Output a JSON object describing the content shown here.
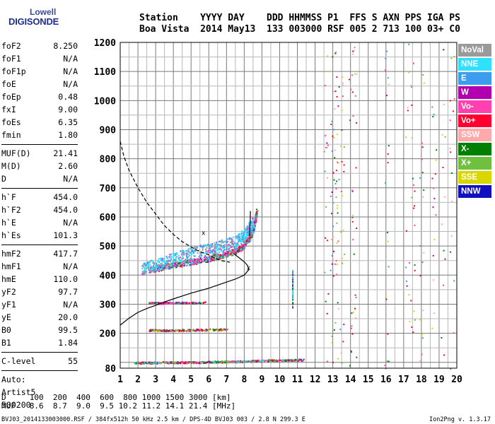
{
  "logo": {
    "line1": "Lowell",
    "line2": "DIGISONDE"
  },
  "header": {
    "line1": "Station    YYYY DAY    DDD HHMMSS P1  FFS S AXN PPS IGA PS",
    "line2": "Boa Vista  2014 May13  133 003000 RSF 005 2 713 100 03+ C0"
  },
  "params": {
    "group1": [
      {
        "name": "foF2",
        "value": "8.250"
      },
      {
        "name": "foF1",
        "value": "N/A"
      },
      {
        "name": "foF1p",
        "value": "N/A"
      },
      {
        "name": "foE",
        "value": "N/A"
      },
      {
        "name": "foEp",
        "value": "0.48"
      },
      {
        "name": "fxI",
        "value": "9.00"
      },
      {
        "name": "foEs",
        "value": "6.35"
      },
      {
        "name": "fmin",
        "value": "1.80"
      }
    ],
    "group2": [
      {
        "name": "MUF(D)",
        "value": "21.41"
      },
      {
        "name": "M(D)",
        "value": "2.60"
      },
      {
        "name": "D",
        "value": "N/A"
      }
    ],
    "group3": [
      {
        "name": "h`F",
        "value": "454.0"
      },
      {
        "name": "h`F2",
        "value": "454.0"
      },
      {
        "name": "h`E",
        "value": "N/A"
      },
      {
        "name": "h`Es",
        "value": "101.3"
      }
    ],
    "group4": [
      {
        "name": "hmF2",
        "value": "417.7"
      },
      {
        "name": "hmF1",
        "value": "N/A"
      },
      {
        "name": "hmE",
        "value": "110.0"
      },
      {
        "name": "yF2",
        "value": "97.7"
      },
      {
        "name": "yF1",
        "value": "N/A"
      },
      {
        "name": "yE",
        "value": "20.0"
      },
      {
        "name": "B0",
        "value": "99.5"
      },
      {
        "name": "B1",
        "value": "1.84"
      }
    ],
    "group5": [
      {
        "name": "C-level",
        "value": "55"
      }
    ],
    "auto": {
      "line1": "Auto:",
      "line2": "Artist5",
      "line3": "500200"
    }
  },
  "legend": [
    {
      "label": "NoVal",
      "color": "#9a9a9a"
    },
    {
      "label": "NNE",
      "color": "#30e0ff"
    },
    {
      "label": "E",
      "color": "#3c9cf0"
    },
    {
      "label": "W",
      "color": "#b000b0"
    },
    {
      "label": "Vo-",
      "color": "#ff40b0"
    },
    {
      "label": "Vo+",
      "color": "#ff0030"
    },
    {
      "label": "SSW",
      "color": "#ffaaaa"
    },
    {
      "label": "X-",
      "color": "#008000"
    },
    {
      "label": "X+",
      "color": "#70c040"
    },
    {
      "label": "SSE",
      "color": "#d8d800"
    },
    {
      "label": "NNW",
      "color": "#1010c0"
    }
  ],
  "muf_table": {
    "d_row": "D     100  200  400  600  800 1000 1500 3000 [km]",
    "muf_row": "MUF   8.6  8.7  9.0  9.5 10.2 11.2 14.1 21.4 [MHz]"
  },
  "footer": {
    "file": "BVJ03_2014133003000.RSF / 384fx512h 50 kHz 2.5 km / DPS-4D BVJ03 003 / 2.8 N 299.3 E",
    "version": "Ion2Png v. 1.3.17"
  },
  "chart_data": {
    "type": "scatter",
    "xlim": [
      1,
      20
    ],
    "ylim": [
      80,
      1200
    ],
    "x_ticks": [
      1,
      2,
      3,
      4,
      5,
      6,
      7,
      8,
      9,
      10,
      11,
      12,
      13,
      14,
      15,
      16,
      17,
      18,
      19,
      20
    ],
    "y_ticks": [
      80,
      100,
      200,
      300,
      400,
      500,
      600,
      700,
      800,
      900,
      1000,
      1100,
      1200
    ],
    "y_tick_labels": [
      80,
      200,
      300,
      400,
      500,
      600,
      700,
      800,
      900,
      1000,
      1100,
      1200
    ],
    "grid": true,
    "freq_grid_step": 0.5,
    "height_grid_step": 50,
    "series": [
      {
        "kind": "echo-trace",
        "layer": "F2 o-trace",
        "points": [
          [
            2.6,
            418
          ],
          [
            3.2,
            426
          ],
          [
            3.8,
            434
          ],
          [
            4.4,
            440
          ],
          [
            5.0,
            446
          ],
          [
            5.5,
            452
          ],
          [
            6.0,
            458
          ],
          [
            6.5,
            466
          ],
          [
            7.0,
            474
          ],
          [
            7.4,
            482
          ],
          [
            7.8,
            494
          ],
          [
            8.1,
            512
          ],
          [
            8.3,
            532
          ],
          [
            8.5,
            560
          ],
          [
            8.6,
            592
          ],
          [
            8.7,
            620
          ]
        ],
        "spread": 20
      },
      {
        "kind": "echo-trace",
        "layer": "spread F",
        "points": [
          [
            2.2,
            420
          ],
          [
            3.0,
            438
          ],
          [
            4.0,
            460
          ],
          [
            5.0,
            478
          ],
          [
            6.0,
            492
          ],
          [
            6.8,
            504
          ],
          [
            7.6,
            520
          ],
          [
            8.1,
            548
          ],
          [
            8.5,
            585
          ]
        ],
        "spread": 40
      },
      {
        "kind": "echo-trace",
        "layer": "Es",
        "points": [
          [
            1.8,
            100
          ],
          [
            2.5,
            100
          ],
          [
            3.5,
            101
          ],
          [
            4.5,
            101
          ],
          [
            5.5,
            102
          ],
          [
            6.5,
            103
          ],
          [
            7.5,
            104
          ],
          [
            8.5,
            106
          ],
          [
            9.5,
            108
          ],
          [
            10.5,
            109
          ],
          [
            11.3,
            110
          ]
        ],
        "spread": 6
      },
      {
        "kind": "echo-trace",
        "layer": "Es 2nd hop",
        "points": [
          [
            2.6,
            212
          ],
          [
            3.5,
            211
          ],
          [
            4.5,
            212
          ],
          [
            5.5,
            213
          ],
          [
            6.5,
            214
          ],
          [
            7.0,
            215
          ]
        ],
        "spread": 6
      },
      {
        "kind": "echo-trace",
        "layer": "Es 3rd hop",
        "points": [
          [
            2.6,
            305
          ],
          [
            3.2,
            305
          ],
          [
            3.8,
            306
          ],
          [
            4.4,
            306
          ],
          [
            5.0,
            306
          ],
          [
            5.8,
            307
          ]
        ],
        "spread": 6
      },
      {
        "kind": "solid-line",
        "name": "",
        "points": [
          [
            1.0,
            228
          ],
          [
            1.5,
            252
          ],
          [
            2.0,
            272
          ],
          [
            2.5,
            285
          ],
          [
            3.0,
            296
          ],
          [
            3.5,
            308
          ],
          [
            4.0,
            318
          ],
          [
            5.0,
            338
          ],
          [
            6.0,
            355
          ],
          [
            7.0,
            376
          ],
          [
            7.5,
            386
          ],
          [
            8.0,
            400
          ],
          [
            8.25,
            418
          ],
          [
            8.2,
            432
          ],
          [
            8.0,
            446
          ],
          [
            7.7,
            460
          ],
          [
            7.4,
            474
          ]
        ]
      },
      {
        "kind": "solid-line",
        "name": "",
        "points": [
          [
            8.3,
            535
          ],
          [
            8.32,
            560
          ],
          [
            8.34,
            590
          ],
          [
            8.35,
            620
          ]
        ]
      },
      {
        "kind": "dashed-line",
        "name": "",
        "points": [
          [
            1.0,
            860
          ],
          [
            1.2,
            810
          ],
          [
            1.5,
            760
          ],
          [
            2.0,
            700
          ],
          [
            2.5,
            650
          ],
          [
            3.0,
            610
          ],
          [
            3.5,
            570
          ],
          [
            4.0,
            540
          ],
          [
            4.5,
            515
          ],
          [
            5.0,
            497
          ],
          [
            5.5,
            480
          ],
          [
            6.0,
            470
          ],
          [
            6.2,
            462
          ],
          [
            6.7,
            450
          ],
          [
            7.2,
            444
          ]
        ]
      }
    ],
    "markers": [
      {
        "label": "x",
        "x": 5.7,
        "y": 538
      },
      {
        "label": "x",
        "x": 8.25,
        "y": 418
      }
    ]
  }
}
